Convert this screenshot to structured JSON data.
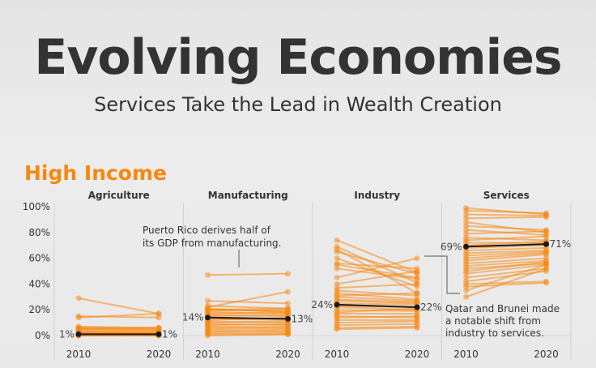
{
  "header": {
    "title": "Evolving Economies",
    "subtitle": "Services Take the Lead in Wealth Creation"
  },
  "section_title": "High Income",
  "colors": {
    "lines": "#f7870f",
    "median": "#1a1a1a",
    "title_accent": "#f7870f"
  },
  "chart_data": {
    "type": "line",
    "subtype": "slope",
    "x": [
      "2010",
      "2020"
    ],
    "ylim": [
      0,
      100
    ],
    "yticks": [
      "0%",
      "20%",
      "40%",
      "60%",
      "80%",
      "100%"
    ],
    "grid": false,
    "panels": [
      {
        "title": "Agriculture",
        "median": [
          1,
          1
        ],
        "median_labels": [
          "1%",
          "1%"
        ],
        "series": [
          [
            29,
            17
          ],
          [
            15,
            14
          ],
          [
            14,
            17
          ],
          [
            7,
            6
          ],
          [
            6,
            5
          ],
          [
            5,
            6
          ],
          [
            4,
            4
          ],
          [
            3,
            3
          ],
          [
            2,
            2
          ],
          [
            1,
            1
          ],
          [
            1,
            1
          ],
          [
            0,
            0
          ],
          [
            0,
            1
          ],
          [
            2,
            1
          ],
          [
            3,
            2
          ],
          [
            5,
            4
          ],
          [
            6,
            6
          ],
          [
            1,
            2
          ],
          [
            0,
            0
          ],
          [
            1,
            0
          ]
        ]
      },
      {
        "title": "Manufacturing",
        "median": [
          14,
          13
        ],
        "median_labels": [
          "14%",
          "13%"
        ],
        "series": [
          [
            47,
            48
          ],
          [
            27,
            25
          ],
          [
            22,
            34
          ],
          [
            23,
            21
          ],
          [
            20,
            19
          ],
          [
            19,
            20
          ],
          [
            18,
            17
          ],
          [
            17,
            18
          ],
          [
            16,
            15
          ],
          [
            15,
            16
          ],
          [
            14,
            13
          ],
          [
            13,
            12
          ],
          [
            12,
            14
          ],
          [
            11,
            10
          ],
          [
            10,
            11
          ],
          [
            9,
            8
          ],
          [
            8,
            9
          ],
          [
            7,
            6
          ],
          [
            6,
            7
          ],
          [
            5,
            5
          ],
          [
            4,
            3
          ],
          [
            3,
            4
          ],
          [
            2,
            2
          ],
          [
            1,
            1
          ],
          [
            0,
            1
          ],
          [
            20,
            21
          ],
          [
            21,
            18
          ]
        ]
      },
      {
        "title": "Industry",
        "median": [
          24,
          22
        ],
        "median_labels": [
          "24%",
          "22%"
        ],
        "series": [
          [
            74,
            49
          ],
          [
            69,
            41
          ],
          [
            67,
            33
          ],
          [
            65,
            48
          ],
          [
            60,
            38
          ],
          [
            56,
            52
          ],
          [
            55,
            45
          ],
          [
            52,
            44
          ],
          [
            45,
            60
          ],
          [
            40,
            50
          ],
          [
            37,
            40
          ],
          [
            35,
            31
          ],
          [
            33,
            28
          ],
          [
            31,
            33
          ],
          [
            30,
            27
          ],
          [
            28,
            26
          ],
          [
            27,
            25
          ],
          [
            25,
            24
          ],
          [
            23,
            22
          ],
          [
            22,
            20
          ],
          [
            20,
            19
          ],
          [
            18,
            21
          ],
          [
            17,
            17
          ],
          [
            15,
            14
          ],
          [
            14,
            15
          ],
          [
            12,
            12
          ],
          [
            10,
            11
          ],
          [
            8,
            9
          ],
          [
            6,
            7
          ],
          [
            5,
            6
          ]
        ]
      },
      {
        "title": "Services",
        "median": [
          69,
          71
        ],
        "median_labels": [
          "69%",
          "71%"
        ],
        "series": [
          [
            99,
            94
          ],
          [
            97,
            95
          ],
          [
            94,
            93
          ],
          [
            91,
            92
          ],
          [
            88,
            80
          ],
          [
            85,
            82
          ],
          [
            82,
            78
          ],
          [
            79,
            81
          ],
          [
            76,
            74
          ],
          [
            74,
            77
          ],
          [
            72,
            72
          ],
          [
            70,
            73
          ],
          [
            68,
            70
          ],
          [
            66,
            68
          ],
          [
            64,
            66
          ],
          [
            62,
            65
          ],
          [
            60,
            64
          ],
          [
            58,
            63
          ],
          [
            56,
            60
          ],
          [
            54,
            58
          ],
          [
            52,
            56
          ],
          [
            50,
            57
          ],
          [
            48,
            55
          ],
          [
            45,
            52
          ],
          [
            42,
            50
          ],
          [
            40,
            42
          ],
          [
            38,
            41
          ],
          [
            35,
            55
          ],
          [
            30,
            52
          ]
        ]
      }
    ],
    "annotations": [
      {
        "text": [
          "Puerto Rico derives half of",
          "its GDP from manufacturing."
        ]
      },
      {
        "text": [
          "Qatar and Brunei made",
          "a notable shift from",
          "industry to services."
        ]
      }
    ]
  }
}
